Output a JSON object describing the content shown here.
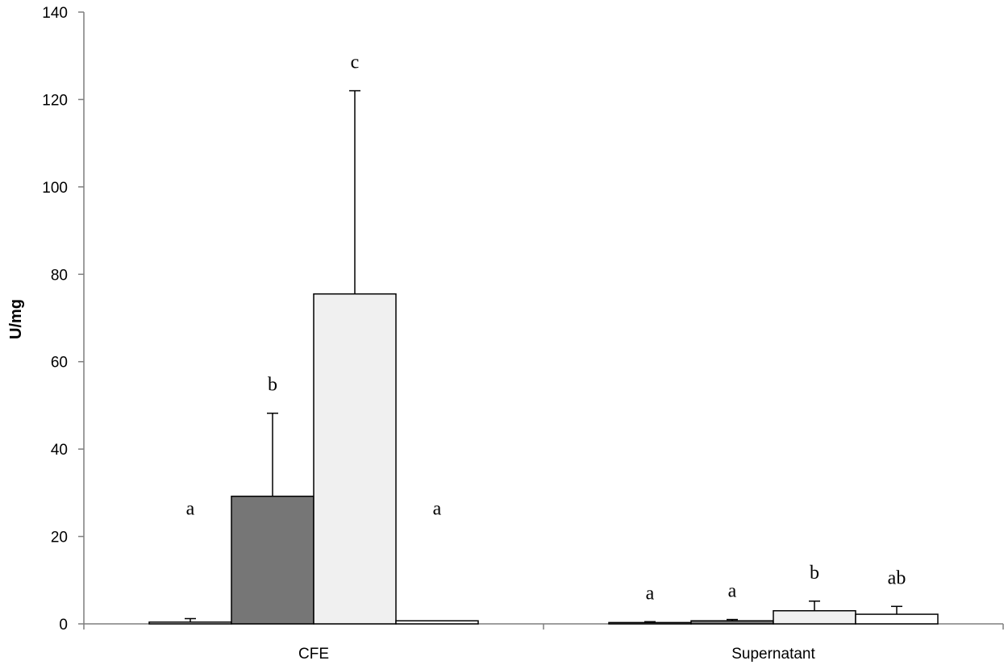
{
  "chart_data": {
    "type": "bar",
    "ylabel": "U/mg",
    "ylim": [
      0,
      140
    ],
    "yticks": [
      0,
      20,
      40,
      60,
      80,
      100,
      120,
      140
    ],
    "categories": [
      "CFE",
      "Supernatant"
    ],
    "grid": false,
    "series": [
      {
        "values": [
          0.4,
          0.3
        ],
        "errors": [
          0.8,
          0.2
        ],
        "labels": [
          "a",
          "a"
        ],
        "color": "#ffffff"
      },
      {
        "values": [
          29.2,
          0.7
        ],
        "errors": [
          19.0,
          0.3
        ],
        "labels": [
          "b",
          "a"
        ],
        "color": "#767676"
      },
      {
        "values": [
          75.5,
          3.0
        ],
        "errors": [
          46.5,
          2.2
        ],
        "labels": [
          "c",
          "b"
        ],
        "color": "#f0f0f0"
      },
      {
        "values": [
          0.7,
          2.2
        ],
        "errors": [
          0.0,
          1.8
        ],
        "labels": [
          "a",
          "ab"
        ],
        "color": "#ffffff"
      }
    ]
  }
}
